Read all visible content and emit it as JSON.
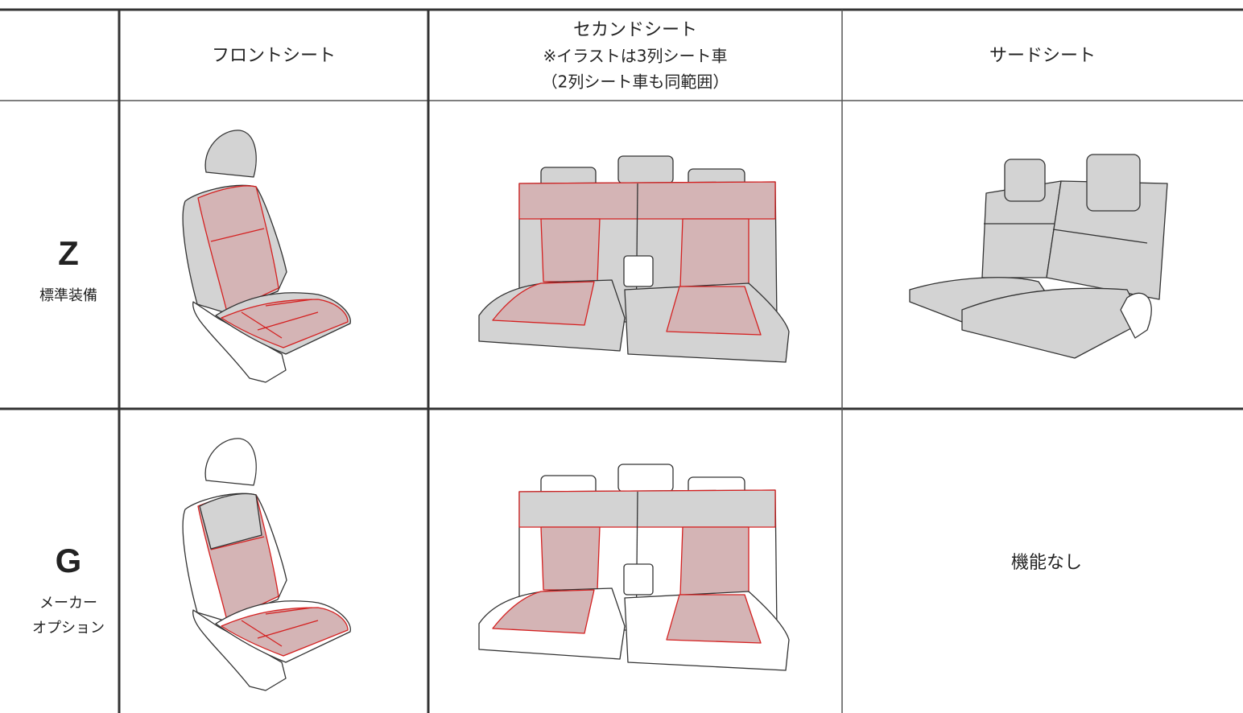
{
  "header": {
    "front": "フロントシート",
    "second": {
      "title": "セカンドシート",
      "note": "※イラストは3列シート車",
      "range": "（2列シート車も同範囲）"
    },
    "third": "サードシート"
  },
  "rows": [
    {
      "grade": "Z",
      "label": [
        "標準装備"
      ]
    },
    {
      "grade": "G",
      "label": [
        "メーカー",
        "オプション"
      ],
      "third": "機能なし"
    }
  ]
}
